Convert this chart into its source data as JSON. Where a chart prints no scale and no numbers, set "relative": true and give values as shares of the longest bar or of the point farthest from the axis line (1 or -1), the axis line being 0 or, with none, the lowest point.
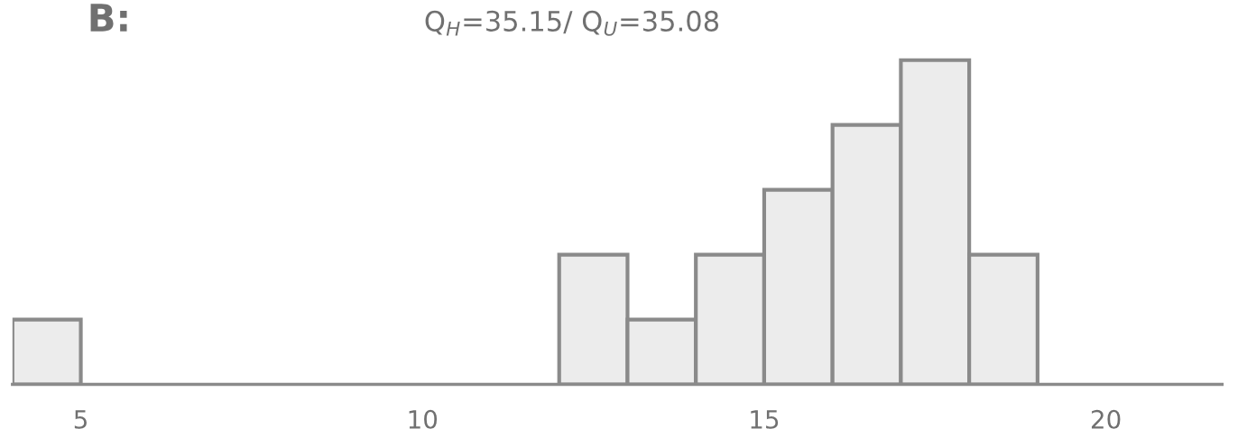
{
  "chart_data": {
    "type": "bar",
    "title": "B:",
    "subtitle": "Q$_{H}$=35.15/ Q$_{U}$=35.08",
    "x": [
      4.5,
      5.5,
      6.5,
      7.5,
      8.5,
      9.5,
      10.5,
      11.5,
      12.5,
      13.5,
      14.5,
      15.5,
      16.5,
      17.5,
      18.5
    ],
    "values": [
      0.2,
      0,
      0,
      0,
      0,
      0,
      0,
      0,
      0.4,
      0.2,
      0.4,
      0.6,
      0.8,
      1,
      0.4
    ],
    "relative": true,
    "color": "#ececec",
    "xlim": [
      4,
      21.7
    ],
    "xticks": [
      5,
      10,
      15,
      20
    ]
  }
}
